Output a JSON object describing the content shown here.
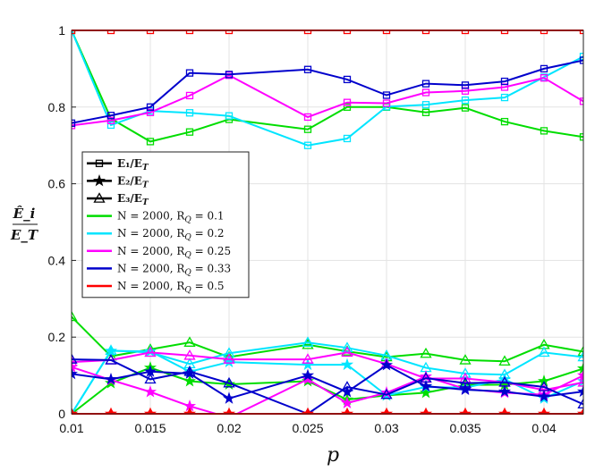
{
  "chart_data": {
    "type": "line",
    "title": "",
    "xlabel": "p",
    "ylabel_num": "Ê_i",
    "ylabel_den": "E_T",
    "xlim": [
      0.01,
      0.0425
    ],
    "ylim": [
      0,
      1
    ],
    "xticks": [
      0.01,
      0.015,
      0.02,
      0.025,
      0.03,
      0.035,
      0.04
    ],
    "xtick_labels": [
      "0.01",
      "0.015",
      "0.02",
      "0.025",
      "0.03",
      "0.035",
      "0.04"
    ],
    "yticks": [
      0,
      0.2,
      0.4,
      0.6,
      0.8,
      1
    ],
    "ytick_labels": [
      "0",
      "0.2",
      "0.4",
      "0.6",
      "0.8",
      "1"
    ],
    "grid": true,
    "legend_position": "left",
    "legend_markers": [
      {
        "marker": "square",
        "label_main": "E₁/E",
        "label_sub": "T"
      },
      {
        "marker": "star",
        "label_main": "E₂/E",
        "label_sub": "T"
      },
      {
        "marker": "triangle",
        "label_main": "E₃/E",
        "label_sub": "T"
      }
    ],
    "legend_lines": [
      {
        "color": "#00dd00",
        "label": "N = 2000, R",
        "sub": "Q",
        "tail": " = 0.1"
      },
      {
        "color": "#00e5ff",
        "label": "N = 2000, R",
        "sub": "Q",
        "tail": " = 0.2"
      },
      {
        "color": "#ff00ff",
        "label": "N = 2000, R",
        "sub": "Q",
        "tail": " = 0.25"
      },
      {
        "color": "#0000cc",
        "label": "N = 2000, R",
        "sub": "Q",
        "tail": " = 0.33"
      },
      {
        "color": "#ff0000",
        "label": "N = 2000, R",
        "sub": "Q",
        "tail": " = 0.5"
      }
    ],
    "x": [
      0.01,
      0.0125,
      0.015,
      0.0175,
      0.02,
      0.025,
      0.0275,
      0.03,
      0.0325,
      0.035,
      0.0375,
      0.04,
      0.0425
    ],
    "series": [
      {
        "name": "E1, RQ=0.1",
        "color": "#00dd00",
        "marker": "square",
        "values": [
          1.0,
          0.77,
          0.71,
          0.735,
          0.768,
          0.742,
          0.8,
          0.8,
          0.786,
          0.798,
          0.762,
          0.738,
          0.722
        ]
      },
      {
        "name": "E1, RQ=0.2",
        "color": "#00e5ff",
        "marker": "square",
        "values": [
          1.0,
          0.753,
          0.79,
          0.785,
          0.777,
          0.7,
          0.718,
          0.801,
          0.806,
          0.818,
          0.825,
          0.878,
          0.932
        ]
      },
      {
        "name": "E1, RQ=0.25",
        "color": "#ff00ff",
        "marker": "square",
        "values": [
          0.752,
          0.765,
          0.786,
          0.83,
          0.883,
          0.774,
          0.812,
          0.81,
          0.838,
          0.842,
          0.852,
          0.876,
          0.815
        ]
      },
      {
        "name": "E1, RQ=0.33",
        "color": "#0000cc",
        "marker": "square",
        "values": [
          0.758,
          0.778,
          0.8,
          0.889,
          0.885,
          0.898,
          0.872,
          0.831,
          0.861,
          0.857,
          0.867,
          0.9,
          0.922
        ]
      },
      {
        "name": "E1, RQ=0.5",
        "color": "#ff0000",
        "marker": "square",
        "values": [
          1,
          1,
          1,
          1,
          1,
          1,
          1,
          1,
          1,
          1,
          1,
          1,
          1
        ]
      },
      {
        "name": "E2, RQ=0.1",
        "color": "#00dd00",
        "marker": "star",
        "values": [
          0.0,
          0.08,
          0.12,
          0.085,
          0.077,
          0.085,
          0.037,
          0.048,
          0.055,
          0.075,
          0.076,
          0.085,
          0.118
        ]
      },
      {
        "name": "E2, RQ=0.2",
        "color": "#00e5ff",
        "marker": "star",
        "values": [
          0.0,
          0.164,
          0.163,
          0.11,
          0.135,
          0.128,
          0.128,
          0.048,
          0.07,
          0.068,
          0.09,
          0.04,
          0.085
        ]
      },
      {
        "name": "E2, RQ=0.25",
        "color": "#ff00ff",
        "marker": "star",
        "values": [
          0.122,
          0.088,
          0.057,
          0.02,
          -0.01,
          0.09,
          0.028,
          0.055,
          0.097,
          0.065,
          0.055,
          0.05,
          0.1
        ]
      },
      {
        "name": "E2, RQ=0.33",
        "color": "#0000cc",
        "marker": "star",
        "values": [
          0.104,
          0.09,
          0.11,
          0.105,
          0.04,
          0.1,
          0.057,
          0.127,
          0.072,
          0.063,
          0.058,
          0.045,
          0.058
        ]
      },
      {
        "name": "E2, RQ=0.5",
        "color": "#ff0000",
        "marker": "star",
        "values": [
          0,
          0,
          0,
          0,
          0,
          0,
          0,
          0,
          0,
          0,
          0,
          0,
          0
        ]
      },
      {
        "name": "E3, RQ=0.1",
        "color": "#00dd00",
        "marker": "triangle",
        "values": [
          0.253,
          0.15,
          0.168,
          0.186,
          0.148,
          0.18,
          0.163,
          0.148,
          0.157,
          0.14,
          0.137,
          0.18,
          0.162
        ]
      },
      {
        "name": "E3, RQ=0.2",
        "color": "#00e5ff",
        "marker": "triangle",
        "values": [
          0.0,
          0.165,
          0.16,
          0.13,
          0.158,
          0.186,
          0.172,
          0.152,
          0.12,
          0.105,
          0.102,
          0.16,
          0.148
        ]
      },
      {
        "name": "E3, RQ=0.25",
        "color": "#ff00ff",
        "marker": "triangle",
        "values": [
          0.135,
          0.14,
          0.16,
          0.152,
          0.142,
          0.142,
          0.16,
          0.13,
          0.092,
          0.092,
          0.082,
          0.062,
          0.082
        ]
      },
      {
        "name": "E3, RQ=0.33",
        "color": "#0000cc",
        "marker": "triangle",
        "values": [
          0.142,
          0.14,
          0.09,
          0.11,
          0.08,
          0.0,
          0.07,
          0.05,
          0.093,
          0.08,
          0.082,
          0.07,
          0.025
        ]
      },
      {
        "name": "E3, RQ=0.5",
        "color": "#ff0000",
        "marker": "triangle",
        "values": [
          0,
          0,
          0,
          0,
          0,
          0,
          0,
          0,
          0,
          0,
          0,
          0,
          0
        ]
      }
    ]
  }
}
